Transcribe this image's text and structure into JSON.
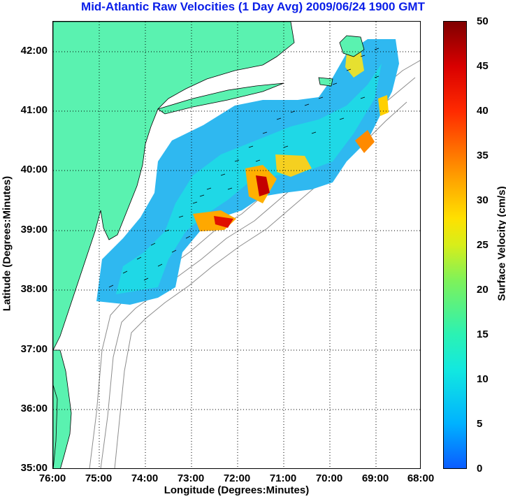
{
  "title": "Mid-Atlantic Raw Velocities (1 Day Avg) 2009/06/24 1900 GMT",
  "x_axis": {
    "label": "Longitude (Degrees:Minutes)",
    "ticks": [
      "76:00",
      "75:00",
      "74:00",
      "73:00",
      "72:00",
      "71:00",
      "70:00",
      "69:00",
      "68:00"
    ]
  },
  "y_axis": {
    "label": "Latitude (Degrees:Minutes)",
    "ticks": [
      "42:00",
      "41:00",
      "40:00",
      "39:00",
      "38:00",
      "37:00",
      "36:00",
      "35:00"
    ]
  },
  "colorbar": {
    "label": "Surface Velocity (cm/s)",
    "ticks": [
      "50",
      "45",
      "40",
      "35",
      "30",
      "25",
      "20",
      "15",
      "10",
      "5",
      "0"
    ],
    "range": [
      0,
      50
    ]
  },
  "map_extent": {
    "lon_min": -76,
    "lon_max": -68,
    "lat_min": 35,
    "lat_max": 42.5
  },
  "colors": {
    "title": "#0a1ee8",
    "land": "#5af2b0",
    "coastline": "#000000",
    "bathymetry": "#8c8c8c",
    "grid": "#000000"
  }
}
